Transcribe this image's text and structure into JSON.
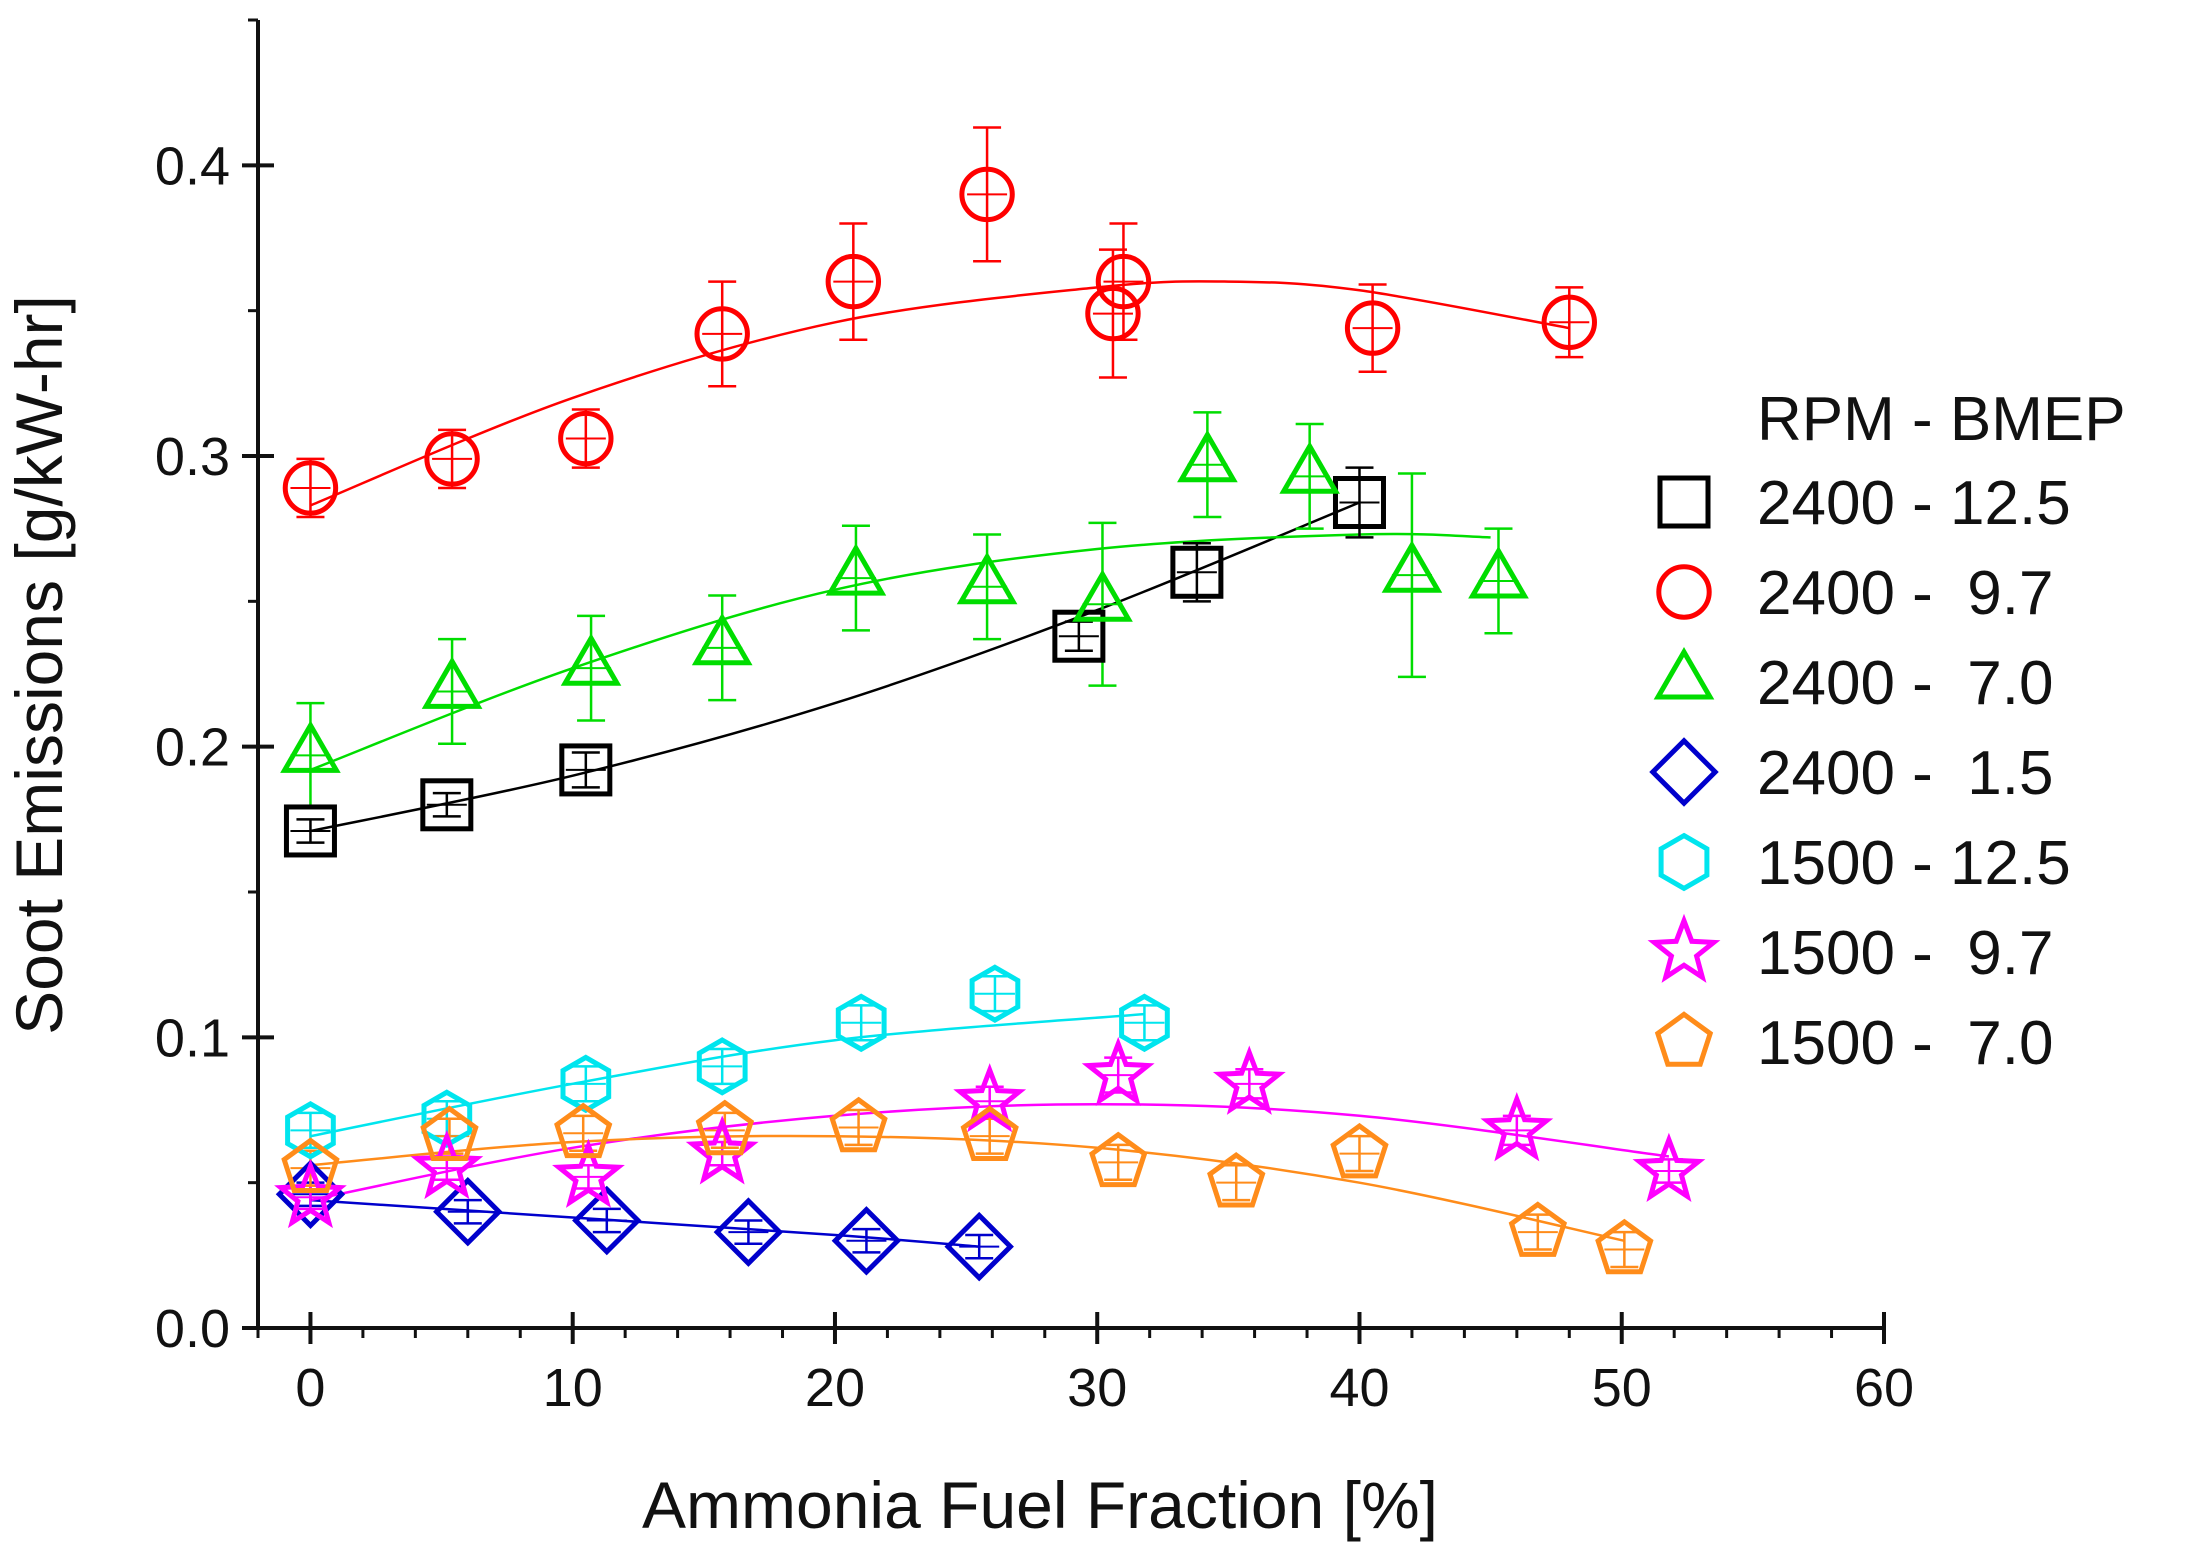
{
  "chart_data": {
    "type": "scatter",
    "title": "",
    "xlabel": "Ammonia Fuel Fraction [%]",
    "ylabel": "Soot Emissions [g/kW-hr]",
    "xlim": [
      -2,
      60
    ],
    "ylim": [
      0,
      0.45
    ],
    "xticks": [
      0,
      10,
      20,
      30,
      40,
      50,
      60
    ],
    "xtick_labels": [
      "0",
      "10",
      "20",
      "30",
      "40",
      "50",
      "60"
    ],
    "yticks": [
      0.0,
      0.1,
      0.2,
      0.3,
      0.4
    ],
    "ytick_labels": [
      "0.0",
      "0.1",
      "0.2",
      "0.3",
      "0.4"
    ],
    "grid": false,
    "legend": {
      "title": "RPM - BMEP",
      "position": "right"
    },
    "series": [
      {
        "name": "2400 - 12.5",
        "marker": "square",
        "color": "#000000",
        "x": [
          0,
          5.2,
          10.5,
          29.3,
          33.8,
          40.0
        ],
        "y": [
          0.171,
          0.18,
          0.192,
          0.238,
          0.26,
          0.284
        ],
        "yerr": [
          0.004,
          0.004,
          0.006,
          0.005,
          0.01,
          0.012
        ],
        "fit": [
          [
            0,
            0.171
          ],
          [
            10,
            0.19
          ],
          [
            20,
            0.215
          ],
          [
            30,
            0.247
          ],
          [
            40,
            0.284
          ]
        ]
      },
      {
        "name": "2400 -  9.7",
        "marker": "circle",
        "color": "#ff0000",
        "x": [
          0,
          5.4,
          10.5,
          15.7,
          20.7,
          25.8,
          30.6,
          31.0,
          40.5,
          48.0
        ],
        "y": [
          0.289,
          0.299,
          0.306,
          0.342,
          0.36,
          0.39,
          0.349,
          0.36,
          0.344,
          0.346
        ],
        "yerr": [
          0.01,
          0.01,
          0.01,
          0.018,
          0.02,
          0.023,
          0.022,
          0.02,
          0.015,
          0.012
        ],
        "fit": [
          [
            0,
            0.283
          ],
          [
            10,
            0.32
          ],
          [
            20,
            0.346
          ],
          [
            30,
            0.358
          ],
          [
            35,
            0.36
          ],
          [
            40,
            0.357
          ],
          [
            48,
            0.344
          ]
        ]
      },
      {
        "name": "2400 -  7.0",
        "marker": "triangle",
        "color": "#00dd00",
        "x": [
          0,
          5.4,
          10.7,
          15.7,
          20.8,
          25.8,
          30.2,
          34.2,
          38.1,
          42.0,
          45.3
        ],
        "y": [
          0.197,
          0.219,
          0.227,
          0.234,
          0.258,
          0.255,
          0.249,
          0.297,
          0.293,
          0.259,
          0.257
        ],
        "yerr": [
          0.018,
          0.018,
          0.018,
          0.018,
          0.018,
          0.018,
          0.028,
          0.018,
          0.018,
          0.035,
          0.018
        ],
        "fit": [
          [
            0,
            0.192
          ],
          [
            10,
            0.227
          ],
          [
            20,
            0.254
          ],
          [
            30,
            0.268
          ],
          [
            40,
            0.273
          ],
          [
            45,
            0.272
          ]
        ]
      },
      {
        "name": "2400 -  1.5",
        "marker": "diamond",
        "color": "#0000cc",
        "x": [
          0,
          6.0,
          11.3,
          16.7,
          21.2,
          25.5
        ],
        "y": [
          0.046,
          0.04,
          0.037,
          0.033,
          0.03,
          0.028
        ],
        "yerr": [
          0.004,
          0.004,
          0.004,
          0.004,
          0.004,
          0.004
        ],
        "fit": [
          [
            0,
            0.044
          ],
          [
            10,
            0.038
          ],
          [
            20,
            0.032
          ],
          [
            25.5,
            0.028
          ]
        ]
      },
      {
        "name": "1500 - 12.5",
        "marker": "hexagon",
        "color": "#00e5ee",
        "x": [
          0,
          5.2,
          10.5,
          15.7,
          21.0,
          26.1,
          31.8
        ],
        "y": [
          0.068,
          0.072,
          0.084,
          0.09,
          0.105,
          0.115,
          0.105
        ],
        "yerr": [
          0.006,
          0.006,
          0.006,
          0.006,
          0.006,
          0.006,
          0.006
        ],
        "fit": [
          [
            0,
            0.066
          ],
          [
            10,
            0.084
          ],
          [
            20,
            0.099
          ],
          [
            31.8,
            0.108
          ]
        ]
      },
      {
        "name": "1500 -  9.7",
        "marker": "star",
        "color": "#ff00ff",
        "x": [
          0,
          5.2,
          10.6,
          15.7,
          25.9,
          30.8,
          35.8,
          46.0,
          51.8
        ],
        "y": [
          0.045,
          0.055,
          0.052,
          0.06,
          0.078,
          0.087,
          0.084,
          0.068,
          0.054
        ],
        "yerr": [
          0.004,
          0.004,
          0.004,
          0.004,
          0.005,
          0.006,
          0.005,
          0.005,
          0.004
        ],
        "fit": [
          [
            0,
            0.044
          ],
          [
            10,
            0.062
          ],
          [
            20,
            0.073
          ],
          [
            30,
            0.077
          ],
          [
            40,
            0.073
          ],
          [
            51.8,
            0.059
          ]
        ]
      },
      {
        "name": "1500 -  7.0",
        "marker": "pentagon",
        "color": "#ff8c1a",
        "x": [
          0,
          5.3,
          10.4,
          15.8,
          20.9,
          25.9,
          30.8,
          35.3,
          40.0,
          46.8,
          50.1
        ],
        "y": [
          0.055,
          0.066,
          0.067,
          0.068,
          0.069,
          0.066,
          0.057,
          0.05,
          0.06,
          0.033,
          0.027
        ],
        "yerr": [
          0.006,
          0.006,
          0.006,
          0.006,
          0.006,
          0.006,
          0.006,
          0.006,
          0.006,
          0.006,
          0.006
        ],
        "fit": [
          [
            0,
            0.056
          ],
          [
            10,
            0.064
          ],
          [
            20,
            0.066
          ],
          [
            30,
            0.062
          ],
          [
            40,
            0.05
          ],
          [
            50.1,
            0.03
          ]
        ]
      }
    ]
  }
}
